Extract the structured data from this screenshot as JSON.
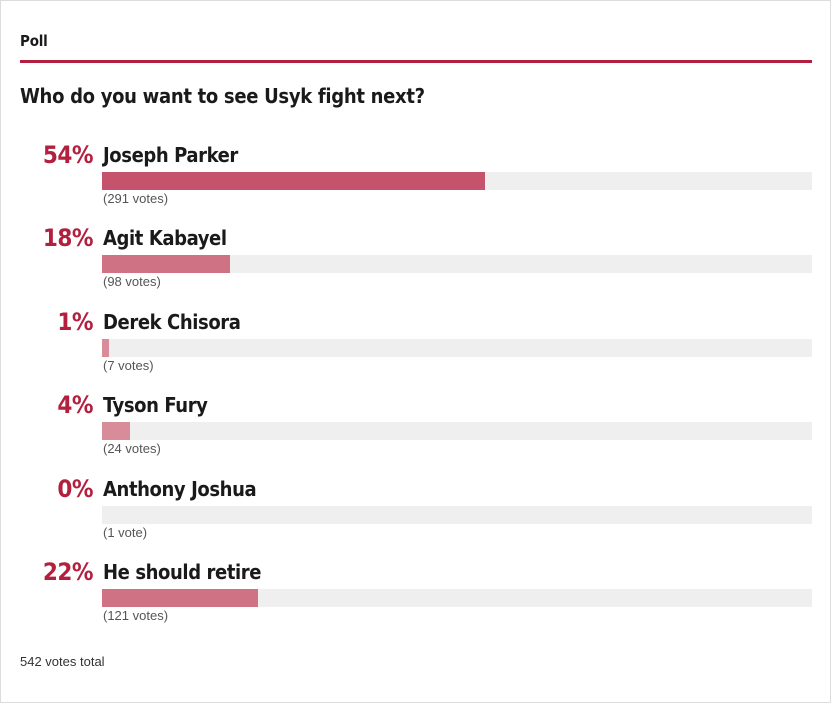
{
  "poll": {
    "label": "Poll",
    "question": "Who do you want to see Usyk fight next?",
    "accent_color": "#b3203f",
    "options": [
      {
        "percent_text": "54%",
        "name": "Joseph Parker",
        "votes_text": "(291 votes)",
        "share": 0.54,
        "bar_color": "#c4536b"
      },
      {
        "percent_text": "18%",
        "name": "Agit Kabayel",
        "votes_text": "(98 votes)",
        "share": 0.18,
        "bar_color": "#cf7384"
      },
      {
        "percent_text": "1%",
        "name": "Derek Chisora",
        "votes_text": "(7 votes)",
        "share": 0.01,
        "bar_color": "#d88c9a"
      },
      {
        "percent_text": "4%",
        "name": "Tyson Fury",
        "votes_text": "(24 votes)",
        "share": 0.04,
        "bar_color": "#d88c9a"
      },
      {
        "percent_text": "0%",
        "name": "Anthony Joshua",
        "votes_text": "(1 vote)",
        "share": 0.0,
        "bar_color": "#d88c9a"
      },
      {
        "percent_text": "22%",
        "name": "He should retire",
        "votes_text": "(121 votes)",
        "share": 0.22,
        "bar_color": "#cf7384"
      }
    ],
    "total_text": "542 votes total"
  }
}
